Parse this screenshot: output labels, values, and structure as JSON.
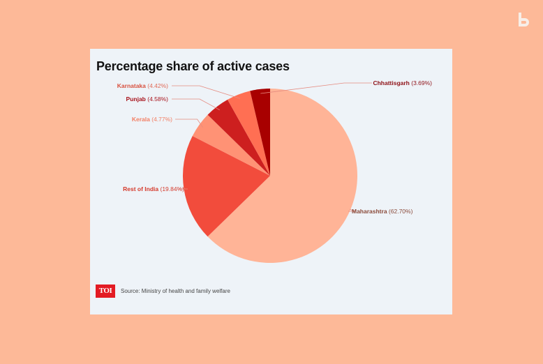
{
  "colors": {
    "background": "#fdb998",
    "card": "#eef3f8",
    "leader_line": "#e58a7f"
  },
  "brand_icon": "b-logo-icon",
  "chart_data": {
    "type": "pie",
    "title": "Percentage share of active cases",
    "start_angle_deg": 0,
    "slices": [
      {
        "label": "Maharashtra",
        "value": 62.7,
        "display": "(62.70%)",
        "color": "#ffb497",
        "name_color": "#8a4a3a",
        "value_color": "#8a4a3a",
        "side": "right"
      },
      {
        "label": "Rest of India",
        "value": 19.84,
        "display": "(19.84%)",
        "color": "#f24c3c",
        "name_color": "#d53a2c",
        "value_color": "#d53a2c",
        "side": "left"
      },
      {
        "label": "Kerala",
        "value": 4.77,
        "display": "(4.77%)",
        "color": "#ff9275",
        "name_color": "#f37e63",
        "value_color": "#f37e63",
        "side": "left"
      },
      {
        "label": "Punjab",
        "value": 4.58,
        "display": "(4.58%)",
        "color": "#cd1f1f",
        "name_color": "#a8131c",
        "value_color": "#a8131c",
        "side": "left"
      },
      {
        "label": "Karnataka",
        "value": 4.42,
        "display": "(4.42%)",
        "color": "#ff6f53",
        "name_color": "#d8513f",
        "value_color": "#e06a57",
        "side": "left"
      },
      {
        "label": "Chhattisgarh",
        "value": 3.69,
        "display": "(3.69%)",
        "color": "#a80000",
        "name_color": "#8e1016",
        "value_color": "#8e1016",
        "side": "right"
      }
    ]
  },
  "footer": {
    "logo_text": "TOI",
    "source": "Source: Ministry of health and family welfare"
  }
}
